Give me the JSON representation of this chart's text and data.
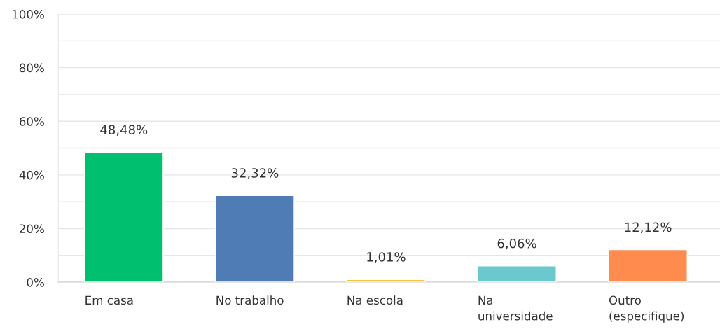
{
  "chart_data": {
    "type": "bar",
    "categories": [
      "Em casa",
      "No trabalho",
      "Na escola",
      "Na universidade",
      "Outro (especifique)"
    ],
    "values": [
      48.48,
      32.32,
      1.01,
      6.06,
      12.12
    ],
    "colors": [
      "#00bf6f",
      "#507cb6",
      "#f7c244",
      "#6bc8cd",
      "#ff8b4f"
    ],
    "value_labels": [
      "48,48%",
      "32,32%",
      "1,01%",
      "6,06%",
      "12,12%"
    ],
    "ylim": [
      0,
      100
    ],
    "yticks": [
      {
        "value": 0,
        "label": "0%"
      },
      {
        "value": 10,
        "label": null
      },
      {
        "value": 20,
        "label": "20%"
      },
      {
        "value": 30,
        "label": null
      },
      {
        "value": 40,
        "label": "40%"
      },
      {
        "value": 50,
        "label": null
      },
      {
        "value": 60,
        "label": "60%"
      },
      {
        "value": 70,
        "label": null
      },
      {
        "value": 80,
        "label": "80%"
      },
      {
        "value": 90,
        "label": null
      },
      {
        "value": 100,
        "label": "100%"
      }
    ],
    "grid": "y"
  }
}
